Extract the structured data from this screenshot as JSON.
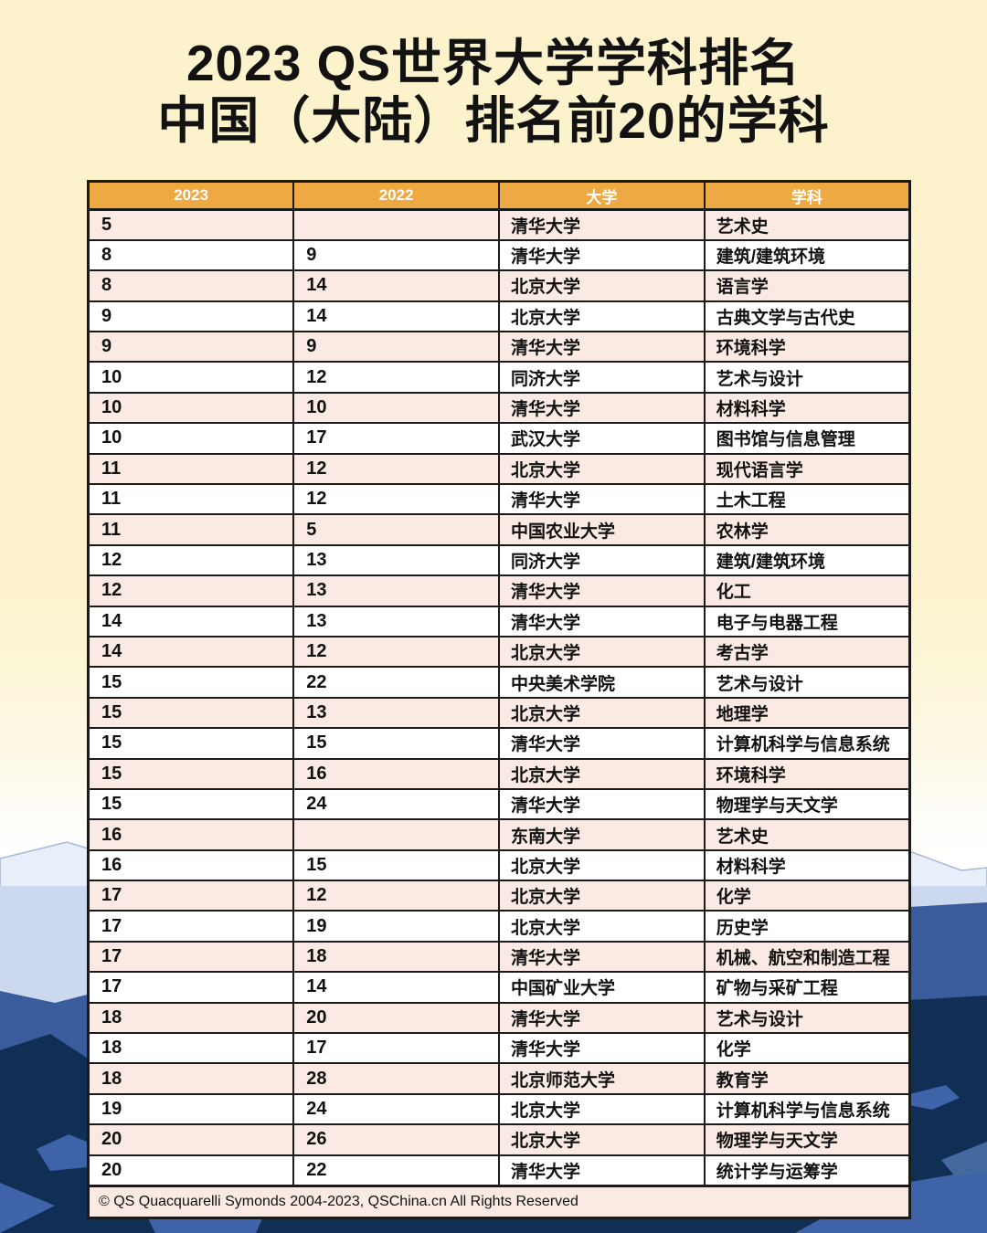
{
  "title": {
    "line1": "2023 QS世界大学学科排名",
    "line2": "中国（大陆）排名前20的学科"
  },
  "table": {
    "headers": [
      "2023",
      "2022",
      "大学",
      "学科"
    ],
    "footer": "© QS Quacquarelli Symonds 2004-2023, QSChina.cn All Rights Reserved"
  },
  "chart_data": {
    "type": "table",
    "title": "2023 QS世界大学学科排名 中国（大陆）排名前20的学科",
    "columns": [
      "2023",
      "2022",
      "大学",
      "学科"
    ],
    "rows": [
      [
        "5",
        "",
        "清华大学",
        "艺术史"
      ],
      [
        "8",
        "9",
        "清华大学",
        "建筑/建筑环境"
      ],
      [
        "8",
        "14",
        "北京大学",
        "语言学"
      ],
      [
        "9",
        "14",
        "北京大学",
        "古典文学与古代史"
      ],
      [
        "9",
        "9",
        "清华大学",
        "环境科学"
      ],
      [
        "10",
        "12",
        "同济大学",
        "艺术与设计"
      ],
      [
        "10",
        "10",
        "清华大学",
        "材料科学"
      ],
      [
        "10",
        "17",
        "武汉大学",
        "图书馆与信息管理"
      ],
      [
        "11",
        "12",
        "北京大学",
        "现代语言学"
      ],
      [
        "11",
        "12",
        "清华大学",
        "土木工程"
      ],
      [
        "11",
        "5",
        "中国农业大学",
        "农林学"
      ],
      [
        "12",
        "13",
        "同济大学",
        "建筑/建筑环境"
      ],
      [
        "12",
        "13",
        "清华大学",
        "化工"
      ],
      [
        "14",
        "13",
        "清华大学",
        "电子与电器工程"
      ],
      [
        "14",
        "12",
        "北京大学",
        "考古学"
      ],
      [
        "15",
        "22",
        "中央美术学院",
        "艺术与设计"
      ],
      [
        "15",
        "13",
        "北京大学",
        "地理学"
      ],
      [
        "15",
        "15",
        "清华大学",
        "计算机科学与信息系统"
      ],
      [
        "15",
        "16",
        "北京大学",
        "环境科学"
      ],
      [
        "15",
        "24",
        "清华大学",
        "物理学与天文学"
      ],
      [
        "16",
        "",
        "东南大学",
        "艺术史"
      ],
      [
        "16",
        "15",
        "北京大学",
        "材料科学"
      ],
      [
        "17",
        "12",
        "北京大学",
        "化学"
      ],
      [
        "17",
        "19",
        "北京大学",
        "历史学"
      ],
      [
        "17",
        "18",
        "清华大学",
        "机械、航空和制造工程"
      ],
      [
        "17",
        "14",
        "中国矿业大学",
        "矿物与采矿工程"
      ],
      [
        "18",
        "20",
        "清华大学",
        "艺术与设计"
      ],
      [
        "18",
        "17",
        "清华大学",
        "化学"
      ],
      [
        "18",
        "28",
        "北京师范大学",
        "教育学"
      ],
      [
        "19",
        "24",
        "北京大学",
        "计算机科学与信息系统"
      ],
      [
        "20",
        "26",
        "北京大学",
        "物理学与天文学"
      ],
      [
        "20",
        "22",
        "清华大学",
        "统计学与运筹学"
      ]
    ]
  },
  "colors": {
    "header_orange": "#EFA942",
    "row_pink": "#FAEAE3",
    "row_white": "#FFFFFF",
    "border_black": "#1a1a1a",
    "background_cream": "#FCF3CC",
    "mountain_pale": "#E9EFFA",
    "mountain_light_blue": "#CBD8EE",
    "mountain_medium_blue": "#3A5C9C",
    "mountain_navy": "#112E55"
  }
}
